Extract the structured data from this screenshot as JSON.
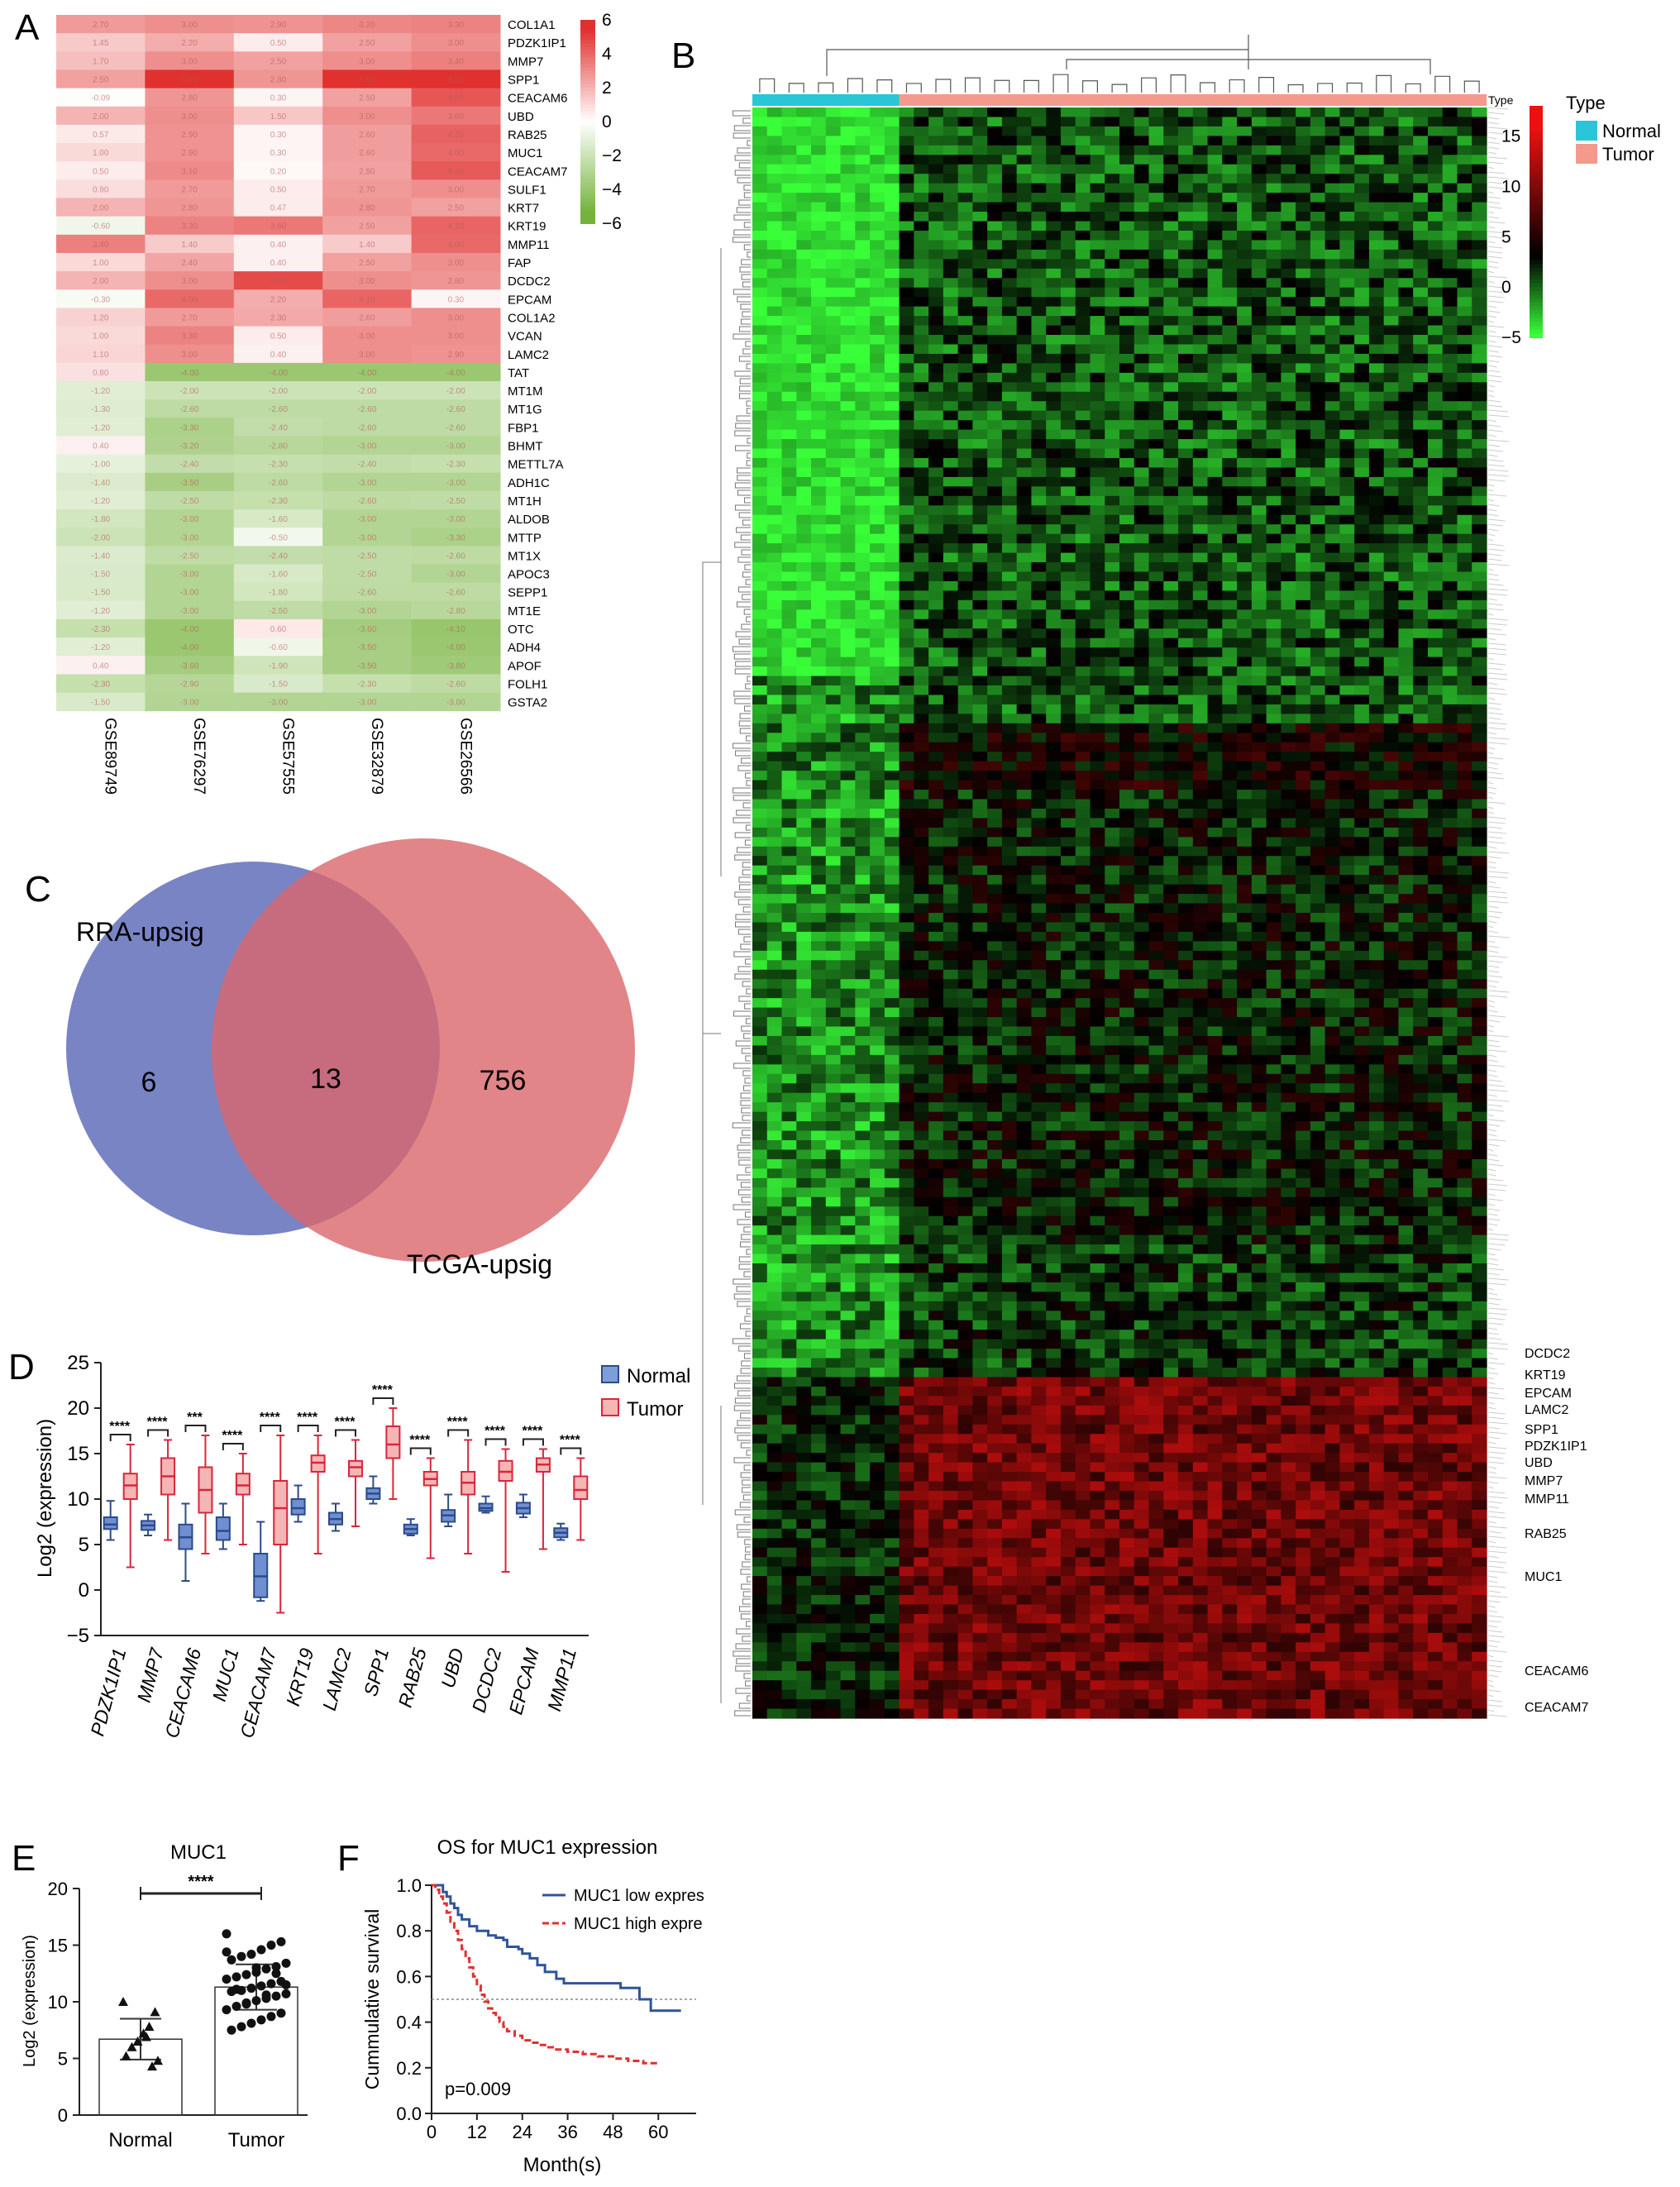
{
  "panels": {
    "A": "A",
    "B": "B",
    "C": "C",
    "D": "D",
    "E": "E",
    "F": "F"
  },
  "colors": {
    "red": "#e0312f",
    "green": "#74b23b",
    "normal_type": "#28c6d6",
    "tumor_type": "#f39a8c",
    "venn_left": "#6e7ac0",
    "venn_right": "#d9676b",
    "box_normal": "#2c4a8c",
    "box_tumor": "#d9263b",
    "km_low": "#2f5597",
    "km_high": "#e0312f"
  },
  "chart_data": [
    {
      "type": "heatmap",
      "panel": "A",
      "genes": [
        "COL1A1",
        "PDZK1IP1",
        "MMP7",
        "SPP1",
        "CEACAM6",
        "UBD",
        "RAB25",
        "MUC1",
        "CEACAM7",
        "SULF1",
        "KRT7",
        "KRT19",
        "MMP11",
        "FAP",
        "DCDC2",
        "EPCAM",
        "COL1A2",
        "VCAN",
        "LAMC2",
        "TAT",
        "MT1M",
        "MT1G",
        "FBP1",
        "BHMT",
        "METTL7A",
        "ADH1C",
        "MT1H",
        "ALDOB",
        "MTTP",
        "MT1X",
        "APOC3",
        "SEPP1",
        "MT1E",
        "OTC",
        "ADH4",
        "APOF",
        "FOLH1",
        "GSTA2"
      ],
      "datasets": [
        "GSE89749",
        "GSE76297",
        "GSE57555",
        "GSE32879",
        "GSE26566"
      ],
      "colorbar": {
        "ticks": [
          6,
          4,
          2,
          0,
          -2,
          -4,
          -6
        ],
        "labels": [
          "6",
          "4",
          "2",
          "0",
          "−2",
          "−4",
          "−6"
        ],
        "range": [
          -6,
          6
        ]
      },
      "values": [
        [
          2.7,
          3.0,
          2.9,
          3.2,
          3.3
        ],
        [
          1.45,
          2.2,
          0.5,
          2.5,
          3.0
        ],
        [
          1.7,
          3.0,
          2.5,
          3.0,
          3.4
        ],
        [
          2.5,
          5.5,
          2.8,
          5.6,
          5.6
        ],
        [
          -0.09,
          2.8,
          0.3,
          2.5,
          4.5
        ],
        [
          2.0,
          3.0,
          1.5,
          3.0,
          3.6
        ],
        [
          0.57,
          2.9,
          0.3,
          2.6,
          4.2
        ],
        [
          1.0,
          2.9,
          0.3,
          2.6,
          4.0
        ],
        [
          0.5,
          3.1,
          0.2,
          2.5,
          4.4
        ],
        [
          0.9,
          2.7,
          0.5,
          2.7,
          3.0
        ],
        [
          2.0,
          2.8,
          0.47,
          2.8,
          2.5
        ],
        [
          -0.6,
          3.3,
          3.6,
          2.5,
          4.1
        ],
        [
          3.4,
          1.4,
          0.4,
          1.4,
          4.0
        ],
        [
          1.0,
          2.4,
          0.4,
          2.5,
          3.0
        ],
        [
          2.0,
          3.0,
          4.8,
          3.0,
          2.8
        ],
        [
          -0.3,
          4.0,
          2.2,
          4.1,
          0.3
        ],
        [
          1.2,
          2.7,
          2.3,
          2.6,
          3.0
        ],
        [
          1.0,
          3.3,
          0.5,
          3.0,
          3.0
        ],
        [
          1.1,
          3.0,
          0.4,
          3.0,
          2.9
        ],
        [
          0.8,
          -4.0,
          -4.0,
          -4.0,
          -4.0
        ],
        [
          -1.2,
          -2.0,
          -2.0,
          -2.0,
          -2.0
        ],
        [
          -1.3,
          -2.6,
          -2.6,
          -2.6,
          -2.6
        ],
        [
          -1.2,
          -3.3,
          -2.4,
          -2.6,
          -2.6
        ],
        [
          0.4,
          -3.2,
          -2.8,
          -3.0,
          -3.0
        ],
        [
          -1.0,
          -2.4,
          -2.3,
          -2.4,
          -2.3
        ],
        [
          -1.4,
          -3.5,
          -2.6,
          -3.0,
          -3.0
        ],
        [
          -1.2,
          -2.5,
          -2.3,
          -2.6,
          -2.5
        ],
        [
          -1.8,
          -3.0,
          -1.6,
          -3.0,
          -3.0
        ],
        [
          -2.0,
          -3.0,
          -0.5,
          -3.0,
          -3.3
        ],
        [
          -1.4,
          -2.5,
          -2.4,
          -2.5,
          -2.6
        ],
        [
          -1.5,
          -3.0,
          -1.6,
          -2.5,
          -3.0
        ],
        [
          -1.5,
          -3.0,
          -1.8,
          -2.6,
          -2.6
        ],
        [
          -1.2,
          -3.0,
          -2.5,
          -3.0,
          -2.8
        ],
        [
          -2.3,
          -4.0,
          0.6,
          -3.6,
          -4.1
        ],
        [
          -1.2,
          -4.0,
          -0.6,
          -3.5,
          -4.0
        ],
        [
          0.4,
          -3.6,
          -1.9,
          -3.5,
          -3.8
        ],
        [
          -2.3,
          -2.9,
          -1.5,
          -2.3,
          -2.6
        ],
        [
          -1.5,
          -3.0,
          -3.0,
          -3.0,
          -3.0
        ]
      ]
    },
    {
      "type": "heatmap",
      "panel": "B",
      "type_label": "Type",
      "legend_title": "Type",
      "groups": [
        "Normal",
        "Tumor"
      ],
      "n_normal": 10,
      "n_tumor": 40,
      "colorbar": {
        "labels": [
          "15",
          "10",
          "5",
          "0",
          "−5"
        ],
        "ticks": [
          15,
          10,
          5,
          0,
          -5
        ],
        "range": [
          -5,
          18
        ]
      },
      "gene_labels": [
        "DCDC2",
        "KRT19",
        "EPCAM",
        "LAMC2",
        "SPP1",
        "PDZK1IP1",
        "UBD",
        "MMP7",
        "MMP11",
        "RAB25",
        "MUC1",
        "CEACAM6",
        "CEACAM7"
      ]
    },
    {
      "type": "venn",
      "panel": "C",
      "sets": [
        "RRA-upsig",
        "TCGA-upsig"
      ],
      "only_left": "6",
      "intersection": "13",
      "only_right": "756"
    },
    {
      "type": "box",
      "panel": "D",
      "ylabel": "Log2 (expression)",
      "ylim": [
        -5,
        25
      ],
      "yticks": [
        "25",
        "20",
        "15",
        "10",
        "5",
        "0",
        "−5"
      ],
      "legend": [
        "Normal",
        "Tumor"
      ],
      "categories": [
        "PDZK1IP1",
        "MMP7",
        "CEACAM6",
        "MUC1",
        "CEACAM7",
        "KRT19",
        "LAMC2",
        "SPP1",
        "RAB25",
        "UBD",
        "DCDC2",
        "EPCAM",
        "MMP11"
      ],
      "significance": [
        "****",
        "****",
        "***",
        "****",
        "****",
        "****",
        "****",
        "****",
        "****",
        "****",
        "****",
        "****",
        "****"
      ],
      "normal": [
        {
          "min": 5.5,
          "q1": 6.7,
          "median": 7.2,
          "q3": 8.0,
          "max": 9.8
        },
        {
          "min": 6.0,
          "q1": 6.6,
          "median": 7.1,
          "q3": 7.6,
          "max": 8.3
        },
        {
          "min": 1.0,
          "q1": 4.5,
          "median": 5.8,
          "q3": 7.2,
          "max": 9.5
        },
        {
          "min": 4.5,
          "q1": 5.5,
          "median": 6.5,
          "q3": 8.0,
          "max": 9.5
        },
        {
          "min": -1.2,
          "q1": -0.8,
          "median": 1.5,
          "q3": 4.0,
          "max": 7.5
        },
        {
          "min": 7.5,
          "q1": 8.3,
          "median": 9.0,
          "q3": 10.0,
          "max": 11.5
        },
        {
          "min": 6.5,
          "q1": 7.2,
          "median": 7.8,
          "q3": 8.5,
          "max": 9.5
        },
        {
          "min": 9.5,
          "q1": 10.0,
          "median": 10.6,
          "q3": 11.2,
          "max": 12.5
        },
        {
          "min": 6.0,
          "q1": 6.2,
          "median": 6.7,
          "q3": 7.2,
          "max": 7.8
        },
        {
          "min": 7.0,
          "q1": 7.5,
          "median": 8.2,
          "q3": 8.8,
          "max": 10.5
        },
        {
          "min": 8.5,
          "q1": 8.7,
          "median": 9.0,
          "q3": 9.5,
          "max": 10.3
        },
        {
          "min": 8.0,
          "q1": 8.4,
          "median": 9.0,
          "q3": 9.6,
          "max": 10.5
        },
        {
          "min": 5.5,
          "q1": 5.8,
          "median": 6.3,
          "q3": 6.8,
          "max": 7.3
        }
      ],
      "tumor": [
        {
          "min": 2.5,
          "q1": 10.0,
          "median": 11.5,
          "q3": 12.8,
          "max": 16.0
        },
        {
          "min": 5.5,
          "q1": 10.5,
          "median": 12.5,
          "q3": 14.5,
          "max": 16.5
        },
        {
          "min": 4.0,
          "q1": 8.5,
          "median": 11.0,
          "q3": 13.5,
          "max": 17.0
        },
        {
          "min": 5.0,
          "q1": 10.5,
          "median": 11.5,
          "q3": 12.8,
          "max": 15.0
        },
        {
          "min": -2.5,
          "q1": 5.0,
          "median": 9.0,
          "q3": 12.0,
          "max": 17.0
        },
        {
          "min": 4.0,
          "q1": 13.0,
          "median": 14.0,
          "q3": 14.8,
          "max": 17.0
        },
        {
          "min": 7.0,
          "q1": 12.5,
          "median": 13.5,
          "q3": 14.2,
          "max": 16.5
        },
        {
          "min": 10.0,
          "q1": 14.5,
          "median": 16.0,
          "q3": 18.0,
          "max": 20.0
        },
        {
          "min": 3.5,
          "q1": 11.5,
          "median": 12.2,
          "q3": 13.0,
          "max": 14.5
        },
        {
          "min": 4.0,
          "q1": 10.5,
          "median": 11.8,
          "q3": 13.0,
          "max": 16.5
        },
        {
          "min": 2.0,
          "q1": 12.0,
          "median": 13.0,
          "q3": 14.2,
          "max": 15.5
        },
        {
          "min": 4.5,
          "q1": 13.0,
          "median": 13.8,
          "q3": 14.5,
          "max": 15.5
        },
        {
          "min": 5.5,
          "q1": 10.0,
          "median": 11.0,
          "q3": 12.5,
          "max": 14.5
        }
      ]
    },
    {
      "type": "scatter",
      "panel": "E",
      "title": "MUC1",
      "ylabel": "Log2 (expression)",
      "ylim": [
        0,
        20
      ],
      "yticks": [
        "20",
        "15",
        "10",
        "5",
        "0"
      ],
      "categories": [
        "Normal",
        "Tumor"
      ],
      "significance": "****",
      "means": [
        6.7,
        11.3
      ],
      "sd": [
        1.8,
        2.0
      ],
      "normal_points": [
        10.0,
        9.1,
        7.8,
        7.2,
        6.5,
        6.0,
        5.2,
        4.8,
        4.3,
        6.9
      ],
      "tumor_points": [
        16.0,
        15.3,
        15.0,
        14.6,
        14.2,
        14.0,
        13.7,
        13.4,
        13.1,
        12.9,
        12.6,
        12.4,
        12.2,
        12.0,
        11.8,
        11.6,
        11.4,
        11.2,
        11.0,
        10.9,
        10.7,
        10.5,
        10.3,
        10.1,
        9.9,
        9.6,
        9.3,
        9.0,
        8.7,
        8.4,
        8.1,
        7.8,
        7.5,
        11.5,
        12.5,
        10.6,
        13.0,
        9.8,
        11.1,
        14.4
      ]
    },
    {
      "type": "line",
      "panel": "F",
      "title": "OS for MUC1 expression",
      "xlabel": "Month(s)",
      "ylabel": "Cummulative survival",
      "xlim": [
        0,
        70
      ],
      "ylim": [
        0,
        1
      ],
      "xticks": [
        "0",
        "12",
        "24",
        "36",
        "48",
        "60"
      ],
      "yticks": [
        "1.0",
        "0.8",
        "0.6",
        "0.4",
        "0.2",
        "0.0"
      ],
      "pvalue": "p=0.009",
      "series": [
        {
          "name": "MUC1 low expres",
          "x": [
            0,
            2,
            3,
            4,
            5,
            6,
            7,
            8,
            10,
            12,
            14,
            15,
            17,
            19,
            20,
            23,
            24,
            26,
            28,
            30,
            33,
            35,
            38,
            40,
            45,
            48,
            50,
            55,
            58,
            62,
            66
          ],
          "y": [
            1.0,
            1.0,
            0.97,
            0.95,
            0.92,
            0.9,
            0.87,
            0.85,
            0.82,
            0.8,
            0.8,
            0.78,
            0.77,
            0.76,
            0.73,
            0.72,
            0.7,
            0.68,
            0.65,
            0.62,
            0.59,
            0.57,
            0.57,
            0.57,
            0.57,
            0.57,
            0.55,
            0.5,
            0.45,
            0.45,
            0.45
          ]
        },
        {
          "name": "MUC1 high expre",
          "x": [
            0,
            1,
            2,
            3,
            4,
            5,
            6,
            7,
            8,
            9,
            10,
            11,
            12,
            13,
            14,
            15,
            16,
            17,
            18,
            19,
            20,
            22,
            24,
            26,
            28,
            30,
            33,
            36,
            40,
            44,
            48,
            52,
            56,
            60
          ],
          "y": [
            1.0,
            0.98,
            0.95,
            0.92,
            0.88,
            0.84,
            0.8,
            0.76,
            0.72,
            0.68,
            0.64,
            0.6,
            0.56,
            0.52,
            0.49,
            0.46,
            0.44,
            0.42,
            0.4,
            0.38,
            0.36,
            0.34,
            0.32,
            0.31,
            0.3,
            0.29,
            0.28,
            0.27,
            0.26,
            0.25,
            0.24,
            0.23,
            0.22,
            0.22
          ]
        }
      ]
    }
  ]
}
